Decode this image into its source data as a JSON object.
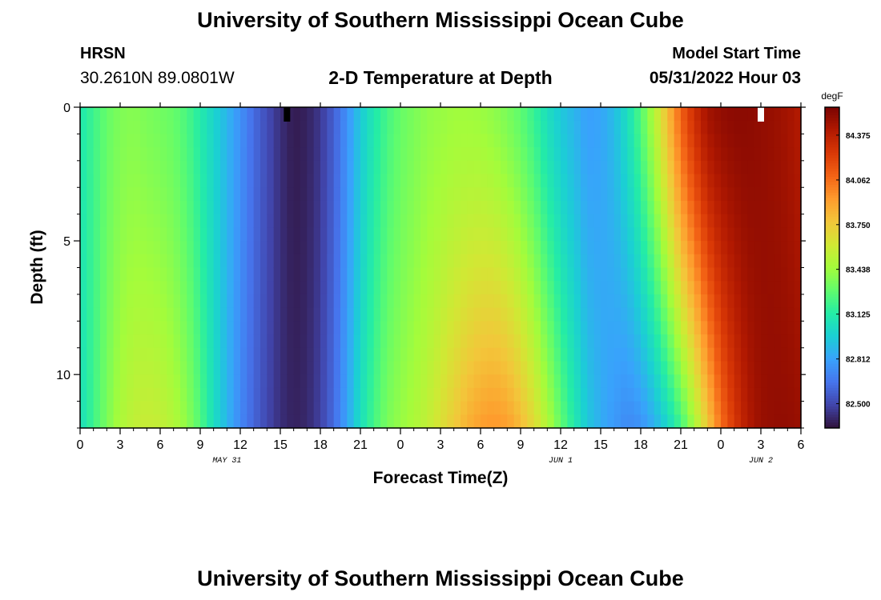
{
  "header": {
    "title": "University of Southern Mississippi Ocean Cube",
    "station": "HRSN",
    "coordinates": "30.2610N  89.0801W",
    "subtitle": "2-D Temperature at Depth",
    "model_start_label": "Model Start Time",
    "model_start_value": "05/31/2022 Hour 03"
  },
  "footer": {
    "title": "University of Southern Mississippi Ocean Cube"
  },
  "chart_data": {
    "type": "heatmap",
    "title": "2-D Temperature at Depth",
    "xlabel": "Forecast Time(Z)",
    "ylabel": "Depth (ft)",
    "x_tick_labels": [
      "0",
      "3",
      "6",
      "9",
      "12",
      "15",
      "18",
      "21",
      "0",
      "3",
      "6",
      "9",
      "12",
      "15",
      "18",
      "21",
      "0",
      "3",
      "6"
    ],
    "date_labels": [
      {
        "text": "MAY 31",
        "hour_index": 11
      },
      {
        "text": "JUN 1",
        "hour_index": 36
      },
      {
        "text": "JUN 2",
        "hour_index": 51
      }
    ],
    "x_range_hours": [
      0,
      54
    ],
    "y_ticks": [
      0,
      5,
      10
    ],
    "y_range_ft": [
      0,
      12
    ],
    "colorbar": {
      "unit": "degF",
      "ticks": [
        "84.375",
        "84.062",
        "83.750",
        "83.438",
        "83.125",
        "82.812",
        "82.500"
      ],
      "range": [
        82.33,
        84.57
      ],
      "colors": [
        "#30123b",
        "#4145ab",
        "#4675ed",
        "#39a2fc",
        "#1bcfd4",
        "#24eca6",
        "#61fc6c",
        "#a4fc3b",
        "#d1e834",
        "#f3c63a",
        "#fe9b2d",
        "#f36315",
        "#d93806",
        "#b11901",
        "#7a0402"
      ]
    },
    "markers": [
      {
        "hour": 15.5,
        "color": "#000000"
      },
      {
        "hour": 51,
        "color": "#ffffff"
      }
    ],
    "time_profile_hours": [
      0,
      1,
      2,
      3,
      4,
      5,
      6,
      7,
      8,
      9,
      10,
      11,
      12,
      13,
      14,
      15,
      16,
      17,
      18,
      19,
      20,
      21,
      22,
      23,
      24,
      25,
      26,
      27,
      28,
      29,
      30,
      31,
      32,
      33,
      34,
      35,
      36,
      37,
      38,
      39,
      40,
      41,
      42,
      43,
      44,
      45,
      46,
      47,
      48,
      49,
      50,
      51,
      52,
      53,
      54
    ],
    "surface_temp_degF": [
      83.1,
      83.2,
      83.3,
      83.36,
      83.38,
      83.35,
      83.33,
      83.3,
      83.23,
      83.12,
      83.0,
      82.88,
      82.75,
      82.62,
      82.52,
      82.42,
      82.36,
      82.38,
      82.45,
      82.58,
      82.75,
      82.95,
      83.1,
      83.22,
      83.3,
      83.35,
      83.4,
      83.42,
      83.44,
      83.44,
      83.43,
      83.4,
      83.35,
      83.28,
      83.18,
      83.05,
      82.95,
      82.88,
      82.8,
      82.82,
      82.9,
      83.05,
      83.25,
      83.5,
      83.8,
      84.1,
      84.3,
      84.45,
      84.5,
      84.52,
      84.52,
      84.5,
      84.48,
      84.45,
      84.4
    ],
    "bottom_temp_degF": [
      83.05,
      83.2,
      83.35,
      83.48,
      83.55,
      83.58,
      83.56,
      83.5,
      83.4,
      83.25,
      83.05,
      82.88,
      82.72,
      82.6,
      82.5,
      82.42,
      82.38,
      82.4,
      82.48,
      82.62,
      82.82,
      83.05,
      83.22,
      83.35,
      83.42,
      83.48,
      83.55,
      83.65,
      83.75,
      83.85,
      83.92,
      83.95,
      83.92,
      83.82,
      83.68,
      83.5,
      83.3,
      83.12,
      82.95,
      82.85,
      82.78,
      82.72,
      82.75,
      82.85,
      83.0,
      83.2,
      83.45,
      83.75,
      84.05,
      84.25,
      84.4,
      84.48,
      84.5,
      84.5,
      84.48
    ]
  }
}
